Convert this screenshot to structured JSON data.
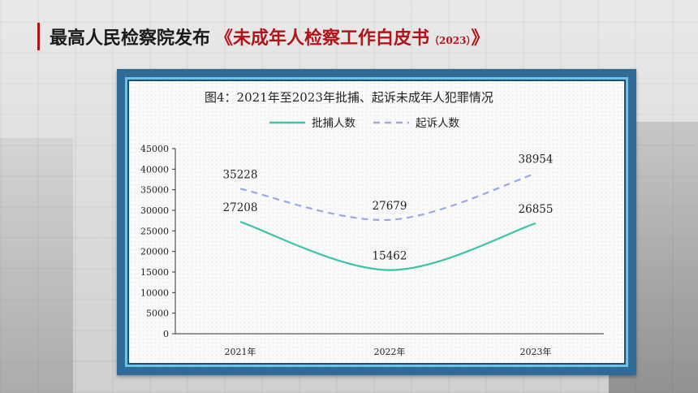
{
  "header": {
    "title_black": "最高人民检察院发布",
    "title_red": "《未成年人检察工作白皮书",
    "title_year": "（2023）",
    "title_close": "》"
  },
  "colors": {
    "accent_red": "#b0151a",
    "frame_blue": "#2f6b96",
    "frame_light": "#6ec3e8",
    "series_arrest": "#3cc3a8",
    "series_prosecute": "#9aa8e6"
  },
  "chart_data": {
    "type": "line",
    "title": "图4：2021年至2023年批捕、起诉未成年人犯罪情况",
    "categories": [
      "2021年",
      "2022年",
      "2023年"
    ],
    "series": [
      {
        "name": "批捕人数",
        "values": [
          27208,
          15462,
          26855
        ],
        "style": "solid",
        "color": "#3cc3a8"
      },
      {
        "name": "起诉人数",
        "values": [
          35228,
          27679,
          38954
        ],
        "style": "dashed",
        "color": "#9aa8e6"
      }
    ],
    "ylim": [
      0,
      45000
    ],
    "yticks": [
      "0",
      "5000",
      "10000",
      "15000",
      "20000",
      "25000",
      "30000",
      "35000",
      "40000",
      "45000"
    ],
    "grid": false,
    "legend": "top-center",
    "smooth": true
  }
}
